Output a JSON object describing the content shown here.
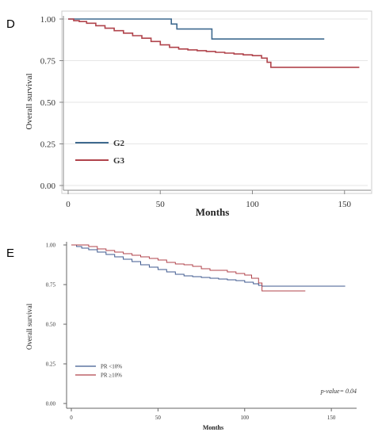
{
  "chart_data": [
    {
      "type": "line",
      "subtype": "kaplan-meier",
      "panel": "D",
      "xlabel": "Months",
      "ylabel": "Overall survival",
      "xlim": [
        0,
        160
      ],
      "ylim": [
        0,
        1
      ],
      "xticks": [
        "0",
        "50",
        "100",
        "150"
      ],
      "yticks": [
        "0.00",
        "0.25",
        "0.50",
        "0.75",
        "1.00"
      ],
      "grid": "horizontal",
      "legend": "bottom-left",
      "series": [
        {
          "name": "G2",
          "color": "#3f6a8f",
          "x": [
            0,
            54,
            56,
            59,
            70,
            78,
            139
          ],
          "y": [
            1.0,
            1.0,
            0.97,
            0.94,
            0.94,
            0.88,
            0.88
          ]
        },
        {
          "name": "G3",
          "color": "#b0434b",
          "x": [
            0,
            3,
            6,
            10,
            15,
            20,
            25,
            30,
            35,
            40,
            45,
            50,
            55,
            60,
            65,
            70,
            75,
            80,
            85,
            90,
            95,
            100,
            105,
            108,
            110,
            120,
            130,
            140,
            150,
            158
          ],
          "y": [
            1.0,
            0.99,
            0.985,
            0.975,
            0.96,
            0.945,
            0.93,
            0.915,
            0.9,
            0.885,
            0.865,
            0.845,
            0.83,
            0.82,
            0.815,
            0.81,
            0.805,
            0.8,
            0.795,
            0.79,
            0.785,
            0.78,
            0.765,
            0.74,
            0.71,
            0.71,
            0.71,
            0.71,
            0.71,
            0.71
          ]
        }
      ]
    },
    {
      "type": "line",
      "subtype": "kaplan-meier",
      "panel": "E",
      "xlabel": "Months",
      "ylabel": "Overall survival",
      "xlim": [
        0,
        160
      ],
      "ylim": [
        0,
        1
      ],
      "xticks": [
        "0",
        "50",
        "100",
        "150"
      ],
      "yticks": [
        "0.00",
        "0.25",
        "0.50",
        "0.75",
        "1.00"
      ],
      "grid": "none",
      "legend": "bottom-left",
      "annotation": "p-value= 0.04",
      "series": [
        {
          "name": "PR <10%",
          "color": "#3f5a8f",
          "x": [
            0,
            3,
            6,
            10,
            15,
            20,
            25,
            30,
            35,
            40,
            45,
            50,
            55,
            60,
            65,
            70,
            75,
            80,
            85,
            90,
            95,
            100,
            105,
            108,
            110,
            120,
            130,
            140,
            150,
            158
          ],
          "y": [
            1.0,
            0.99,
            0.98,
            0.97,
            0.955,
            0.94,
            0.925,
            0.91,
            0.895,
            0.875,
            0.86,
            0.845,
            0.83,
            0.815,
            0.805,
            0.8,
            0.795,
            0.79,
            0.785,
            0.78,
            0.775,
            0.765,
            0.755,
            0.745,
            0.74,
            0.74,
            0.74,
            0.74,
            0.74,
            0.74
          ]
        },
        {
          "name": "PR ≥10%",
          "color": "#b0434b",
          "x": [
            0,
            5,
            10,
            15,
            20,
            25,
            30,
            35,
            40,
            45,
            50,
            55,
            60,
            65,
            70,
            75,
            80,
            85,
            90,
            95,
            100,
            104,
            108,
            110,
            120,
            130,
            135
          ],
          "y": [
            1.0,
            1.0,
            0.99,
            0.975,
            0.965,
            0.955,
            0.945,
            0.935,
            0.925,
            0.915,
            0.905,
            0.89,
            0.88,
            0.875,
            0.865,
            0.85,
            0.84,
            0.84,
            0.83,
            0.82,
            0.81,
            0.79,
            0.76,
            0.71,
            0.71,
            0.71,
            0.71
          ]
        }
      ]
    }
  ]
}
